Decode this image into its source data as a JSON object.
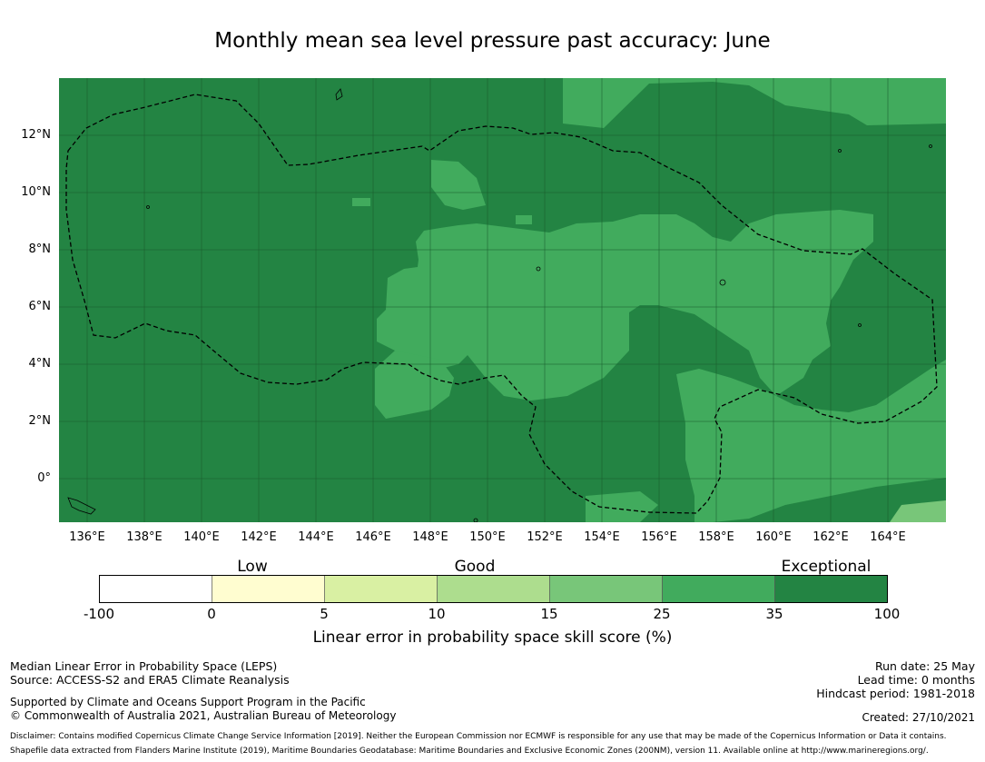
{
  "title": "Monthly mean sea level pressure past accuracy: June",
  "map": {
    "x_ticks": [
      "136°E",
      "138°E",
      "140°E",
      "142°E",
      "144°E",
      "146°E",
      "148°E",
      "150°E",
      "152°E",
      "154°E",
      "156°E",
      "158°E",
      "160°E",
      "162°E",
      "164°E"
    ],
    "y_ticks": [
      "12°N",
      "10°N",
      "8°N",
      "6°N",
      "4°N",
      "2°N",
      "0°"
    ],
    "grid": true,
    "boundary_line": "dashed"
  },
  "colorbar": {
    "category_labels": [
      "Low",
      "Good",
      "Exceptional"
    ],
    "tick_labels": [
      "-100",
      "0",
      "5",
      "10",
      "15",
      "25",
      "35",
      "100"
    ],
    "colors": [
      "#ffffff",
      "#fffdd0",
      "#d9f0a3",
      "#addd8e",
      "#78c679",
      "#41ab5d",
      "#238443"
    ],
    "label": "Linear error in probability space skill score (%)"
  },
  "footer": {
    "left_lines": [
      "Median Linear Error in Probability Space (LEPS)",
      "Source: ACCESS-S2 and ERA5 Climate Reanalysis"
    ],
    "support_lines": [
      "Supported by Climate and Oceans Support Program in the Pacific",
      "© Commonwealth of Australia 2021, Australian Bureau of Meteorology"
    ],
    "run_date": "Run date: 25 May",
    "lead_time": "Lead time: 0 months",
    "hindcast": "Hindcast period: 1981-2018",
    "created": "Created: 27/10/2021",
    "disclaimer": "Disclaimer: Contains modified Copernicus Climate Change Service Information [2019]. Neither the European Commission nor ECMWF is responsible for any use that may be made of the Copernicus Information or Data it contains.",
    "shapefile": "Shapefile data extracted from Flanders Marine Institute (2019), Maritime Boundaries Geodatabase: Maritime Boundaries and Exclusive Economic Zones (200NM), version 11. Available online at http://www.marineregions.org/."
  }
}
